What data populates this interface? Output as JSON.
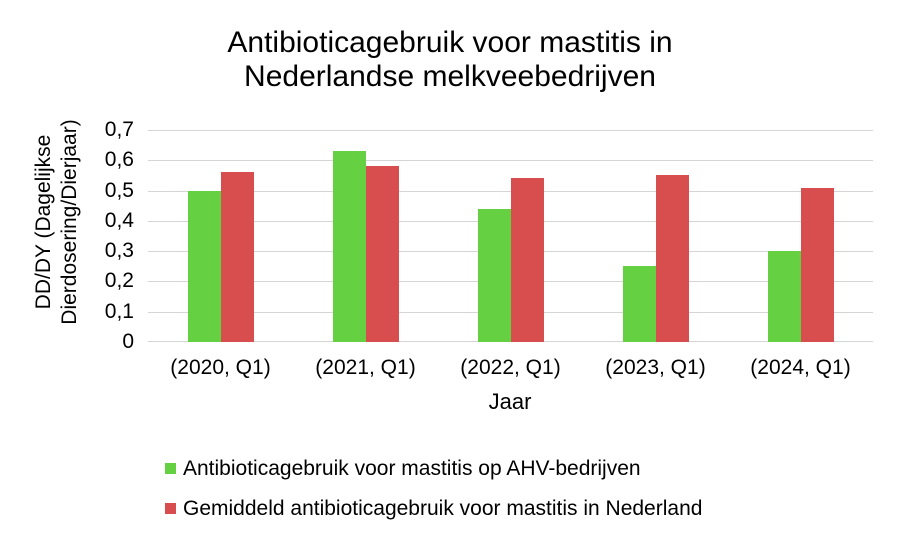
{
  "chart_title": {
    "line1": "Antibioticagebruik voor mastitis in",
    "line2": "Nederlandse melkveebedrijven"
  },
  "chart_data": {
    "type": "bar",
    "title": "Antibioticagebruik voor mastitis in Nederlandse melkveebedrijven",
    "xlabel": "Jaar",
    "ylabel": "DD/DY (Dagelijkse Dierdosering/Dierjaar)",
    "ylabel_lines": [
      "DD/DY (Dagelijkse",
      "Dierdosering/Dierjaar)"
    ],
    "categories": [
      "(2020, Q1)",
      "(2021, Q1)",
      "(2022, Q1)",
      "(2023, Q1)",
      "(2024, Q1)"
    ],
    "series": [
      {
        "name": "Antibioticagebruik voor mastitis op AHV-bedrijven",
        "color": "#65d042",
        "values": [
          0.5,
          0.63,
          0.44,
          0.25,
          0.3
        ]
      },
      {
        "name": "Gemiddeld antibioticagebruik voor mastitis in Nederland",
        "color": "#d84d4d",
        "values": [
          0.56,
          0.58,
          0.54,
          0.55,
          0.51
        ]
      }
    ],
    "ylim": [
      0,
      0.7
    ],
    "ytick_step": 0.1,
    "ytick_labels": [
      "0",
      "0,1",
      "0,2",
      "0,3",
      "0,4",
      "0,5",
      "0,6",
      "0,7"
    ],
    "decimal_separator": ",",
    "grid": true,
    "gridline_color": "#d5d5d5",
    "legend_position": "bottom-left",
    "text_color": "#000000",
    "background_color": "#ffffff"
  }
}
